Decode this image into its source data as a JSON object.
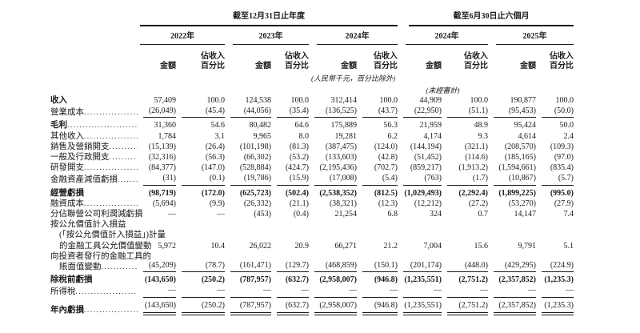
{
  "header": {
    "annual_title": "截至12月31日止年度",
    "interim_title": "截至6月30日止六個月",
    "years": [
      "2022年",
      "2023年",
      "2024年",
      "2024年",
      "2025年"
    ],
    "col_amount": "金額",
    "col_pct_line1": "佔收入",
    "col_pct_line2": "百分比",
    "unit_note": "(人民幣千元，百分比除外)",
    "unaudited_note": "(未經審計)"
  },
  "rows": [
    {
      "label_lines": [
        {
          "text": "收入",
          "indent": false,
          "dots": false
        }
      ],
      "bold_label": true,
      "bold_values": false,
      "rule_below": false,
      "double_rule": false,
      "gap_above": false,
      "values": [
        "57,409",
        "100.0",
        "124,538",
        "100.0",
        "312,414",
        "100.0",
        "44,909",
        "100.0",
        "190,877",
        "100.0"
      ]
    },
    {
      "label_lines": [
        {
          "text": "營業成本",
          "indent": false,
          "dots": true
        }
      ],
      "bold_label": false,
      "bold_values": false,
      "rule_below": true,
      "double_rule": false,
      "gap_above": false,
      "values": [
        "(26,049)",
        "(45.4)",
        "(44,056)",
        "(35.4)",
        "(136,525)",
        "(43.7)",
        "(22,950)",
        "(51.1)",
        "(95,453)",
        "(50.0)"
      ]
    },
    {
      "label_lines": [
        {
          "text": "毛利",
          "indent": false,
          "dots": true
        }
      ],
      "bold_label": true,
      "bold_values": false,
      "rule_below": false,
      "double_rule": false,
      "gap_above": true,
      "values": [
        "31,360",
        "54.6",
        "80,482",
        "64.6",
        "175,889",
        "56.3",
        "21,959",
        "48.9",
        "95,424",
        "50.0"
      ]
    },
    {
      "label_lines": [
        {
          "text": "其他收入",
          "indent": false,
          "dots": true
        }
      ],
      "bold_label": false,
      "bold_values": false,
      "rule_below": false,
      "double_rule": false,
      "gap_above": false,
      "values": [
        "1,784",
        "3.1",
        "9,965",
        "8.0",
        "19,281",
        "6.2",
        "4,174",
        "9.3",
        "4,614",
        "2.4"
      ]
    },
    {
      "label_lines": [
        {
          "text": "銷售及營銷開支",
          "indent": false,
          "dots": true
        }
      ],
      "bold_label": false,
      "bold_values": false,
      "rule_below": false,
      "double_rule": false,
      "gap_above": false,
      "values": [
        "(15,139)",
        "(26.4)",
        "(101,198)",
        "(81.3)",
        "(387,475)",
        "(124.0)",
        "(144,194)",
        "(321.1)",
        "(208,570)",
        "(109.3)"
      ]
    },
    {
      "label_lines": [
        {
          "text": "一般及行政開支",
          "indent": false,
          "dots": true
        }
      ],
      "bold_label": false,
      "bold_values": false,
      "rule_below": false,
      "double_rule": false,
      "gap_above": false,
      "values": [
        "(32,316)",
        "(56.3)",
        "(66,302)",
        "(53.2)",
        "(133,603)",
        "(42.8)",
        "(51,452)",
        "(114.6)",
        "(185,165)",
        "(97.0)"
      ]
    },
    {
      "label_lines": [
        {
          "text": "研發開支",
          "indent": false,
          "dots": true
        }
      ],
      "bold_label": false,
      "bold_values": false,
      "rule_below": false,
      "double_rule": false,
      "gap_above": false,
      "values": [
        "(84,377)",
        "(147.0)",
        "(528,884)",
        "(424.7)",
        "(2,195,436)",
        "(702.7)",
        "(859,217)",
        "(1,913.2)",
        "(1,594,661)",
        "(835.4)"
      ]
    },
    {
      "label_lines": [
        {
          "text": "金融資產減值虧損",
          "indent": false,
          "dots": true
        }
      ],
      "bold_label": false,
      "bold_values": false,
      "rule_below": true,
      "double_rule": false,
      "gap_above": false,
      "values": [
        "(31)",
        "(0.1)",
        "(19,786)",
        "(15.9)",
        "(17,008)",
        "(5.4)",
        "(763)",
        "(1.7)",
        "(10,867)",
        "(5.7)"
      ]
    },
    {
      "label_lines": [
        {
          "text": "經營虧損",
          "indent": false,
          "dots": false
        }
      ],
      "bold_label": true,
      "bold_values": true,
      "rule_below": false,
      "double_rule": false,
      "gap_above": true,
      "values": [
        "(98,719)",
        "(172.0)",
        "(625,723)",
        "(502.4)",
        "(2,538,352)",
        "(812.5)",
        "(1,029,493)",
        "(2,292.4)",
        "(1,899,225)",
        "(995.0)"
      ]
    },
    {
      "label_lines": [
        {
          "text": "融資成本",
          "indent": false,
          "dots": true
        }
      ],
      "bold_label": false,
      "bold_values": false,
      "rule_below": false,
      "double_rule": false,
      "gap_above": false,
      "values": [
        "(5,694)",
        "(9.9)",
        "(26,332)",
        "(21.1)",
        "(38,321)",
        "(12.3)",
        "(12,212)",
        "(27.2)",
        "(53,270)",
        "(27.9)"
      ]
    },
    {
      "label_lines": [
        {
          "text": "分佔聯營公司利潤減虧損",
          "indent": false,
          "dots": true
        }
      ],
      "bold_label": false,
      "bold_values": false,
      "rule_below": false,
      "double_rule": false,
      "gap_above": false,
      "values": [
        "—",
        "—",
        "(453)",
        "(0.4)",
        "21,254",
        "6.8",
        "324",
        "0.7",
        "14,147",
        "7.4"
      ]
    },
    {
      "label_lines": [
        {
          "text": "按公允價值計入損益",
          "indent": false,
          "dots": false
        },
        {
          "text": "(「按公允價值計入損益」)計量",
          "indent": true,
          "dots": false
        },
        {
          "text": "的金融工具公允價值變動",
          "indent": true,
          "dots": true
        }
      ],
      "bold_label": false,
      "bold_values": false,
      "rule_below": false,
      "double_rule": false,
      "gap_above": false,
      "values": [
        "5,972",
        "10.4",
        "26,022",
        "20.9",
        "66,271",
        "21.2",
        "7,004",
        "15.6",
        "9,791",
        "5.1"
      ]
    },
    {
      "label_lines": [
        {
          "text": "向投資者發行的金融工具的",
          "indent": false,
          "dots": false
        },
        {
          "text": "賬面值變動",
          "indent": true,
          "dots": true
        }
      ],
      "bold_label": false,
      "bold_values": false,
      "rule_below": true,
      "double_rule": false,
      "gap_above": false,
      "values": [
        "(45,209)",
        "(78.7)",
        "(161,471)",
        "(129.7)",
        "(468,859)",
        "(150.1)",
        "(201,174)",
        "(448.0)",
        "(429,295)",
        "(224.9)"
      ]
    },
    {
      "label_lines": [
        {
          "text": "除稅前虧損",
          "indent": false,
          "dots": false
        }
      ],
      "bold_label": true,
      "bold_values": true,
      "rule_below": false,
      "double_rule": false,
      "gap_above": true,
      "values": [
        "(143,650)",
        "(250.2)",
        "(787,957)",
        "(632.7)",
        "(2,958,007)",
        "(946.8)",
        "(1,235,551)",
        "(2,751.2)",
        "(2,357,852)",
        "(1,235.3)"
      ]
    },
    {
      "label_lines": [
        {
          "text": "所得稅",
          "indent": false,
          "dots": true
        }
      ],
      "bold_label": false,
      "bold_values": false,
      "rule_below": true,
      "double_rule": false,
      "gap_above": false,
      "values": [
        "—",
        "—",
        "—",
        "—",
        "—",
        "—",
        "—",
        "—",
        "—",
        "—"
      ]
    },
    {
      "label_lines": [
        {
          "text": "年內虧損",
          "indent": false,
          "dots": true
        }
      ],
      "bold_label": true,
      "bold_values": false,
      "rule_below": false,
      "double_rule": true,
      "gap_above": true,
      "values": [
        "(143,650)",
        "(250.2)",
        "(787,957)",
        "(632.7)",
        "(2,958,007)",
        "(946.8)",
        "(1,235,551)",
        "(2,751.2)",
        "(2,357,852)",
        "(1,235.3)"
      ]
    }
  ]
}
